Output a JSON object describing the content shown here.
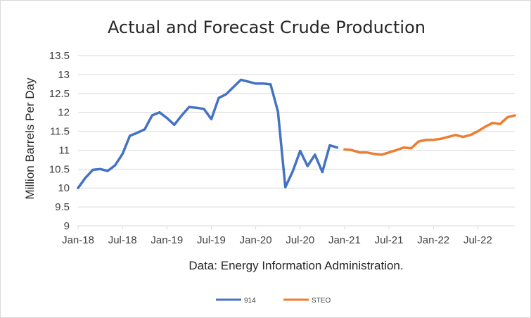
{
  "chart_data": {
    "type": "line",
    "title": "Actual and Forecast Crude Production",
    "xlabel": "Data: Energy Information Administration.",
    "ylabel": "Million Barrels Per Day",
    "ylim": [
      9,
      13.5
    ],
    "y_ticks": [
      "9",
      "9.5",
      "10",
      "10.5",
      "11",
      "11.5",
      "12",
      "12.5",
      "13",
      "13.5"
    ],
    "x_tick_labels": [
      "Jan-18",
      "Jul-18",
      "Jan-19",
      "Jul-19",
      "Jan-20",
      "Jul-20",
      "Jan-21",
      "Jul-21",
      "Jan-22",
      "Jul-22"
    ],
    "grid": "horizontal",
    "legend_position": "bottom",
    "colors": {
      "914": "#4472c4",
      "STEO": "#ed7d31",
      "grid": "#d9d9d9"
    },
    "series": [
      {
        "name": "914",
        "x": [
          "Jan-18",
          "Feb-18",
          "Mar-18",
          "Apr-18",
          "May-18",
          "Jun-18",
          "Jul-18",
          "Aug-18",
          "Sep-18",
          "Oct-18",
          "Nov-18",
          "Dec-18",
          "Jan-19",
          "Feb-19",
          "Mar-19",
          "Apr-19",
          "May-19",
          "Jun-19",
          "Jul-19",
          "Aug-19",
          "Sep-19",
          "Oct-19",
          "Nov-19",
          "Dec-19",
          "Jan-20",
          "Feb-20",
          "Mar-20",
          "Apr-20",
          "May-20",
          "Jun-20",
          "Jul-20",
          "Aug-20",
          "Sep-20",
          "Oct-20",
          "Nov-20",
          "Dec-20"
        ],
        "values": [
          10.0,
          10.27,
          10.48,
          10.5,
          10.45,
          10.6,
          10.9,
          11.38,
          11.46,
          11.55,
          11.92,
          12.0,
          11.85,
          11.67,
          11.92,
          12.14,
          12.12,
          12.09,
          11.82,
          12.38,
          12.48,
          12.67,
          12.86,
          12.81,
          12.76,
          12.76,
          12.74,
          12.02,
          10.02,
          10.44,
          10.98,
          10.58,
          10.88,
          10.42,
          11.13,
          11.07
        ]
      },
      {
        "name": "STEO",
        "x": [
          "Jan-21",
          "Feb-21",
          "Mar-21",
          "Apr-21",
          "May-21",
          "Jun-21",
          "Jul-21",
          "Aug-21",
          "Sep-21",
          "Oct-21",
          "Nov-21",
          "Dec-21",
          "Jan-22",
          "Feb-22",
          "Mar-22",
          "Apr-22",
          "May-22",
          "Jun-22",
          "Jul-22",
          "Aug-22",
          "Sep-22",
          "Oct-22",
          "Nov-22",
          "Dec-22"
        ],
        "values": [
          11.02,
          11.0,
          10.94,
          10.94,
          10.9,
          10.88,
          10.94,
          11.0,
          11.07,
          11.05,
          11.23,
          11.27,
          11.27,
          11.3,
          11.35,
          11.4,
          11.35,
          11.4,
          11.5,
          11.62,
          11.72,
          11.69,
          11.87,
          11.92
        ]
      }
    ]
  }
}
